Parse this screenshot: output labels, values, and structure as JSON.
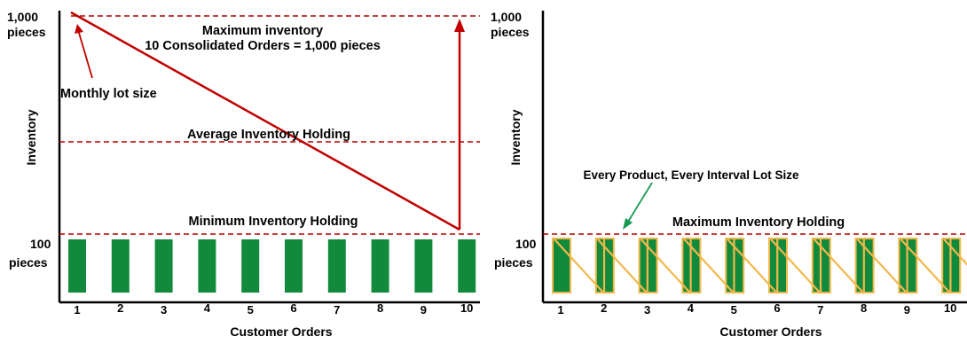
{
  "colors": {
    "bar_green": "#118a3c",
    "bar_green_light": "#2e9e4a",
    "sawtooth": "#f2b84b",
    "inventory_line": "#c00000",
    "dashed": "#b00000",
    "callout_green": "#1a9a55",
    "axis": "#000000"
  },
  "left_chart": {
    "y_top_value": "1,000",
    "y_top_unit": "pieces",
    "y_bottom_value": "100",
    "y_bottom_unit": "pieces",
    "y_axis_label": "Inventory",
    "x_axis_label": "Customer Orders",
    "x_ticks": [
      "1",
      "2",
      "3",
      "4",
      "5",
      "6",
      "7",
      "8",
      "9",
      "10"
    ],
    "max_line_1": "Maximum inventory",
    "max_line_2": "10 Consolidated Orders = 1,000 pieces",
    "monthly_lot": "Monthly lot size",
    "avg_label": "Average Inventory Holding",
    "min_label": "Minimum Inventory Holding"
  },
  "right_chart": {
    "y_top_value": "1,000",
    "y_top_unit": "pieces",
    "y_bottom_value": "100",
    "y_bottom_unit": "pieces",
    "y_axis_label": "Inventory",
    "x_axis_label": "Customer Orders",
    "x_ticks": [
      "1",
      "2",
      "3",
      "4",
      "5",
      "6",
      "7",
      "8",
      "9",
      "10"
    ],
    "epei_label": "Every Product, Every Interval Lot Size",
    "max_label": "Maximum Inventory Holding"
  }
}
